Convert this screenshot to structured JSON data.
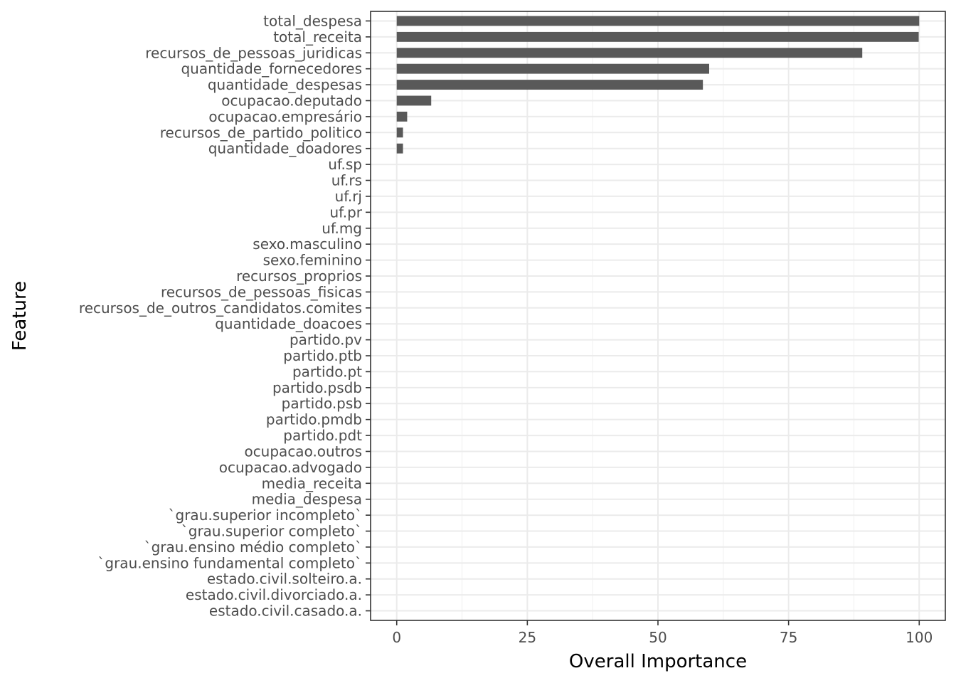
{
  "chart_data": {
    "type": "bar",
    "orientation": "horizontal",
    "xlabel": "Overall Importance",
    "ylabel": "Feature",
    "xlim": [
      -5,
      105
    ],
    "x_ticks": [
      0,
      25,
      50,
      75,
      100
    ],
    "x_tick_labels": [
      "0",
      "25",
      "50",
      "75",
      "100"
    ],
    "grid": true,
    "bar_color": "#595959",
    "categories": [
      "total_despesa",
      "total_receita",
      "recursos_de_pessoas_juridicas",
      "quantidade_fornecedores",
      "quantidade_despesas",
      "ocupacao.deputado",
      "ocupacao.empresário",
      "recursos_de_partido_politico",
      "quantidade_doadores",
      "uf.sp",
      "uf.rs",
      "uf.rj",
      "uf.pr",
      "uf.mg",
      "sexo.masculino",
      "sexo.feminino",
      "recursos_proprios",
      "recursos_de_pessoas_fisicas",
      "recursos_de_outros_candidatos.comites",
      "quantidade_doacoes",
      "partido.pv",
      "partido.ptb",
      "partido.pt",
      "partido.psdb",
      "partido.psb",
      "partido.pmdb",
      "partido.pdt",
      "ocupacao.outros",
      "ocupacao.advogado",
      "media_receita",
      "media_despesa",
      "`grau.superior incompleto`",
      "`grau.superior completo`",
      "`grau.ensino médio completo`",
      "`grau.ensino fundamental completo`",
      "estado.civil.solteiro.a.",
      "estado.civil.divorciado.a.",
      "estado.civil.casado.a."
    ],
    "values": [
      100,
      99.9,
      89.1,
      59.8,
      58.6,
      6.6,
      2.0,
      1.2,
      1.2,
      0,
      0,
      0,
      0,
      0,
      0,
      0,
      0,
      0,
      0,
      0,
      0,
      0,
      0,
      0,
      0,
      0,
      0,
      0,
      0,
      0,
      0,
      0,
      0,
      0,
      0,
      0,
      0,
      0
    ]
  }
}
